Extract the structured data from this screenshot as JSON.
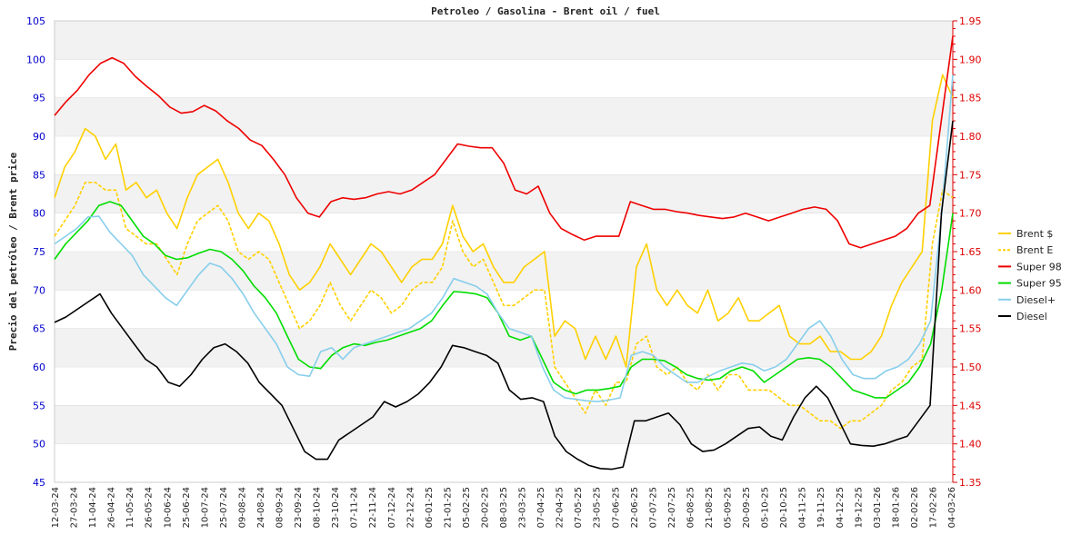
{
  "chart_data": {
    "type": "line",
    "title": "Petroleo / Gasolina  -  Brent oil / fuel",
    "ylabel": "Precio del petróleo  /  Brent price",
    "xlabel": "",
    "ylim_left": [
      45,
      105
    ],
    "yticks_left": [
      45,
      50,
      55,
      60,
      65,
      70,
      75,
      80,
      85,
      90,
      95,
      100,
      105
    ],
    "ylim_right": [
      1.35,
      1.95
    ],
    "yticks_right": [
      "1.35",
      "1.40",
      "1.45",
      "1.50",
      "1.55",
      "1.60",
      "1.65",
      "1.70",
      "1.75",
      "1.80",
      "1.85",
      "1.90",
      "1.95"
    ],
    "x_ticks": [
      "12-03-24",
      "27-03-24",
      "11-04-24",
      "26-04-24",
      "11-05-24",
      "26-05-24",
      "10-06-24",
      "25-06-24",
      "10-07-24",
      "25-07-24",
      "09-08-24",
      "24-08-24",
      "08-09-24",
      "23-09-24",
      "08-10-24",
      "23-10-24",
      "07-11-24",
      "22-11-24",
      "07-12-24",
      "22-12-24",
      "06-01-25",
      "21-01-25",
      "05-02-25",
      "20-02-25",
      "08-03-25",
      "23-03-25",
      "07-04-25",
      "22-04-25",
      "07-05-25",
      "23-05-25",
      "07-06-25",
      "22-06-25",
      "07-07-25",
      "22-07-25",
      "06-08-25",
      "21-08-25",
      "05-09-25",
      "20-09-25",
      "05-10-25",
      "20-10-25",
      "04-11-25",
      "19-11-25",
      "04-12-25",
      "19-12-25",
      "03-01-26",
      "18-01-26",
      "02-02-26",
      "17-02-26",
      "04-03-26"
    ],
    "legend_position": "right",
    "series": [
      {
        "name": "Brent $",
        "color": "#ffd000",
        "dash": false,
        "axis": "left",
        "values": [
          82,
          86,
          88,
          91,
          90,
          87,
          89,
          83,
          84,
          82,
          83,
          80,
          78,
          82,
          85,
          86,
          87,
          84,
          80,
          78,
          80,
          79,
          76,
          72,
          70,
          71,
          73,
          76,
          74,
          72,
          74,
          76,
          75,
          73,
          71,
          73,
          74,
          74,
          76,
          81,
          77,
          75,
          76,
          73,
          71,
          71,
          73,
          74,
          75,
          64,
          66,
          65,
          61,
          64,
          61,
          64,
          60,
          73,
          76,
          70,
          68,
          70,
          68,
          67,
          70,
          66,
          67,
          69,
          66,
          66,
          67,
          68,
          64,
          63,
          63,
          64,
          62,
          62,
          61,
          61,
          62,
          64,
          68,
          71,
          73,
          75,
          92,
          98,
          95
        ]
      },
      {
        "name": "Brent E",
        "color": "#ffd000",
        "dash": true,
        "axis": "left",
        "values": [
          77,
          79,
          81,
          84,
          84,
          83,
          83,
          78,
          77,
          76,
          76,
          74,
          72,
          76,
          79,
          80,
          81,
          79,
          75,
          74,
          75,
          74,
          71,
          68,
          65,
          66,
          68,
          71,
          68,
          66,
          68,
          70,
          69,
          67,
          68,
          70,
          71,
          71,
          73,
          79,
          75,
          73,
          74,
          71,
          68,
          68,
          69,
          70,
          70,
          60,
          58,
          56,
          54,
          57,
          55,
          58,
          58,
          63,
          64,
          60,
          59,
          60,
          58,
          57,
          59,
          57,
          59,
          59,
          57,
          57,
          57,
          56,
          55,
          55,
          54,
          53,
          53,
          52,
          53,
          53,
          54,
          55,
          57,
          58,
          60,
          61,
          76,
          83,
          82
        ]
      },
      {
        "name": "Super 98",
        "color": "#ee0000",
        "dash": false,
        "axis": "right",
        "values": [
          1.827,
          1.845,
          1.86,
          1.88,
          1.895,
          1.902,
          1.895,
          1.878,
          1.865,
          1.853,
          1.838,
          1.83,
          1.832,
          1.84,
          1.833,
          1.82,
          1.81,
          1.795,
          1.788,
          1.77,
          1.75,
          1.72,
          1.7,
          1.695,
          1.715,
          1.72,
          1.718,
          1.72,
          1.725,
          1.728,
          1.725,
          1.73,
          1.74,
          1.75,
          1.77,
          1.79,
          1.787,
          1.785,
          1.785,
          1.765,
          1.73,
          1.725,
          1.735,
          1.7,
          1.68,
          1.672,
          1.665,
          1.67,
          1.67,
          1.67,
          1.715,
          1.71,
          1.705,
          1.705,
          1.702,
          1.7,
          1.697,
          1.695,
          1.693,
          1.695,
          1.7,
          1.695,
          1.69,
          1.695,
          1.7,
          1.705,
          1.708,
          1.705,
          1.69,
          1.66,
          1.655,
          1.66,
          1.665,
          1.67,
          1.68,
          1.7,
          1.71,
          1.82,
          1.93
        ]
      },
      {
        "name": "Super 95",
        "color": "#00dd00",
        "dash": false,
        "axis": "left",
        "values": [
          74,
          76,
          77.5,
          79,
          81,
          81.5,
          81,
          79,
          77,
          76,
          74.5,
          74,
          74.2,
          74.8,
          75.3,
          75,
          74,
          72.5,
          70.5,
          69,
          67,
          64,
          61,
          60,
          59.8,
          61.5,
          62.5,
          63,
          62.8,
          63.2,
          63.5,
          64,
          64.5,
          65,
          66,
          68,
          69.8,
          69.7,
          69.5,
          69,
          67,
          64,
          63.5,
          64,
          61,
          58,
          57,
          56.5,
          57,
          57,
          57.2,
          57.5,
          60,
          61,
          61,
          60.8,
          60,
          59,
          58.5,
          58.3,
          58.5,
          59.5,
          60,
          59.5,
          58,
          59,
          60,
          61,
          61.2,
          61,
          60,
          58.5,
          57,
          56.5,
          56,
          56,
          57,
          58,
          60,
          63,
          70,
          80
        ]
      },
      {
        "name": "Diesel+",
        "color": "#87ceeb",
        "dash": false,
        "axis": "left",
        "values": [
          76,
          77,
          78,
          79.5,
          79.6,
          77.5,
          76,
          74.5,
          72,
          70.5,
          69,
          68,
          70,
          72,
          73.5,
          73,
          71.5,
          69.5,
          67,
          65,
          63,
          60,
          59,
          58.8,
          62,
          62.5,
          61,
          62.5,
          63,
          63.5,
          64,
          64.5,
          65,
          66,
          67,
          69,
          71.5,
          71,
          70.5,
          69.5,
          67,
          65,
          64.5,
          64,
          60,
          57,
          56,
          55.8,
          55.6,
          55.5,
          55.7,
          56,
          61.5,
          62,
          61.5,
          60,
          59,
          58,
          58,
          58.8,
          59.5,
          60,
          60.5,
          60.3,
          59.5,
          60,
          61,
          63,
          65,
          66,
          64,
          61,
          59,
          58.5,
          58.5,
          59.5,
          60,
          61,
          63,
          66,
          80,
          98
        ]
      },
      {
        "name": "Diesel",
        "color": "#000000",
        "dash": false,
        "axis": "left",
        "values": [
          65.8,
          66.5,
          67.5,
          68.5,
          69.5,
          67,
          65,
          63,
          61,
          60,
          58,
          57.5,
          59,
          61,
          62.5,
          63,
          62,
          60.5,
          58,
          56.5,
          55,
          52,
          49,
          48,
          48,
          50.5,
          51.5,
          52.5,
          53.5,
          55.5,
          54.8,
          55.5,
          56.5,
          58,
          60,
          62.8,
          62.5,
          62,
          61.5,
          60.5,
          57,
          55.8,
          56,
          55.5,
          51,
          49,
          48,
          47.2,
          46.8,
          46.7,
          47,
          53,
          53,
          53.5,
          54,
          52.5,
          50,
          49,
          49.2,
          50,
          51,
          52,
          52.2,
          51,
          50.5,
          53.5,
          56,
          57.5,
          56,
          53,
          50,
          49.8,
          49.7,
          50,
          50.5,
          51,
          53,
          55,
          80,
          92
        ]
      }
    ]
  },
  "legend": {
    "items": [
      {
        "label": "Brent $",
        "color": "#ffd000",
        "dash": false
      },
      {
        "label": "Brent E",
        "color": "#ffd000",
        "dash": true
      },
      {
        "label": "Super 98",
        "color": "#ee0000",
        "dash": false
      },
      {
        "label": "Super 95",
        "color": "#00dd00",
        "dash": false
      },
      {
        "label": "Diesel+",
        "color": "#87ceeb",
        "dash": false
      },
      {
        "label": "Diesel",
        "color": "#000000",
        "dash": false
      }
    ]
  },
  "colors": {
    "left_axis": "#0000cc",
    "right_axis": "#dd0000",
    "band": "#f2f2f2",
    "gridline": "#dddddd"
  }
}
